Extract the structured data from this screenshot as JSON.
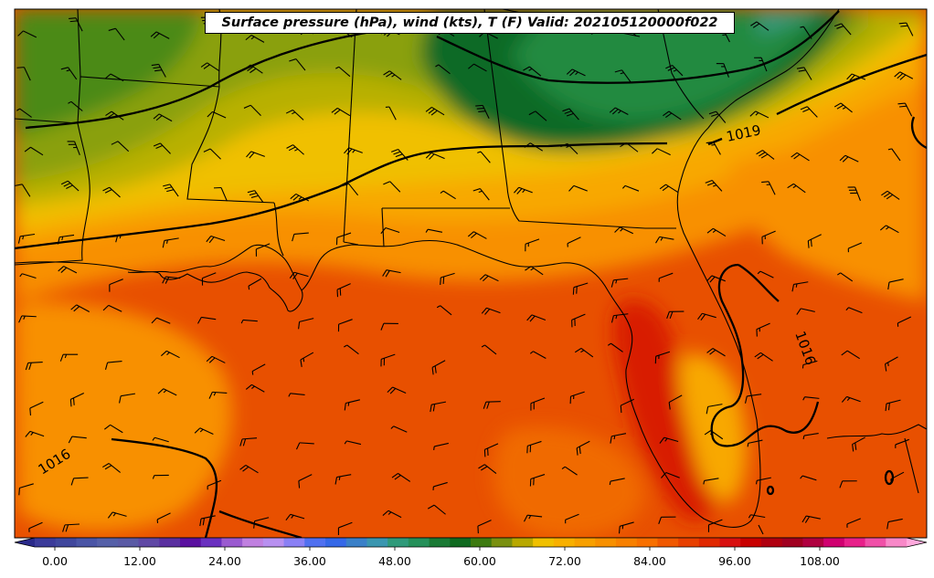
{
  "title": "Surface pressure (hPa), wind (kts), T (F) Valid: 202105120000f022",
  "isobar_labels": [
    "1019",
    "1016",
    "1016"
  ],
  "colorbar": {
    "ticks": [
      "0.00",
      "12.00",
      "24.00",
      "36.00",
      "48.00",
      "60.00",
      "72.00",
      "84.00",
      "96.00",
      "108.00"
    ],
    "colors": [
      "#3b3b9a",
      "#40479d",
      "#4a55a6",
      "#5560a8",
      "#5a5aa5",
      "#5f48a5",
      "#5a2fa0",
      "#5a10a0",
      "#6a30c0",
      "#9a5ad0",
      "#c080e0",
      "#b890f0",
      "#8a80f5",
      "#5070f0",
      "#3568e8",
      "#3a80c8",
      "#3a96b0",
      "#2f9a7a",
      "#25905a",
      "#1a7a35",
      "#0f6a20",
      "#3d7a10",
      "#7a9010",
      "#b8a800",
      "#f0c000",
      "#f8b000",
      "#f8a000",
      "#f89000",
      "#f88000",
      "#f87000",
      "#f05800",
      "#e84000",
      "#e02800",
      "#d81010",
      "#c80000",
      "#b00010",
      "#a00020",
      "#b00040",
      "#d00070",
      "#e8208a",
      "#f050a8",
      "#f888c8"
    ]
  },
  "fill_colors": {
    "dark_green": "#0e6a25",
    "mid_green": "#238a40",
    "teal": "#3a9a80",
    "olive_green": "#4b8a18",
    "olive": "#8aa010",
    "yellow_olive": "#b8b000",
    "yellow": "#f0c000",
    "light_orange": "#f8a800",
    "orange": "#f89000",
    "orange_red": "#f06a00",
    "red_orange": "#e85000",
    "red": "#d81a00"
  }
}
